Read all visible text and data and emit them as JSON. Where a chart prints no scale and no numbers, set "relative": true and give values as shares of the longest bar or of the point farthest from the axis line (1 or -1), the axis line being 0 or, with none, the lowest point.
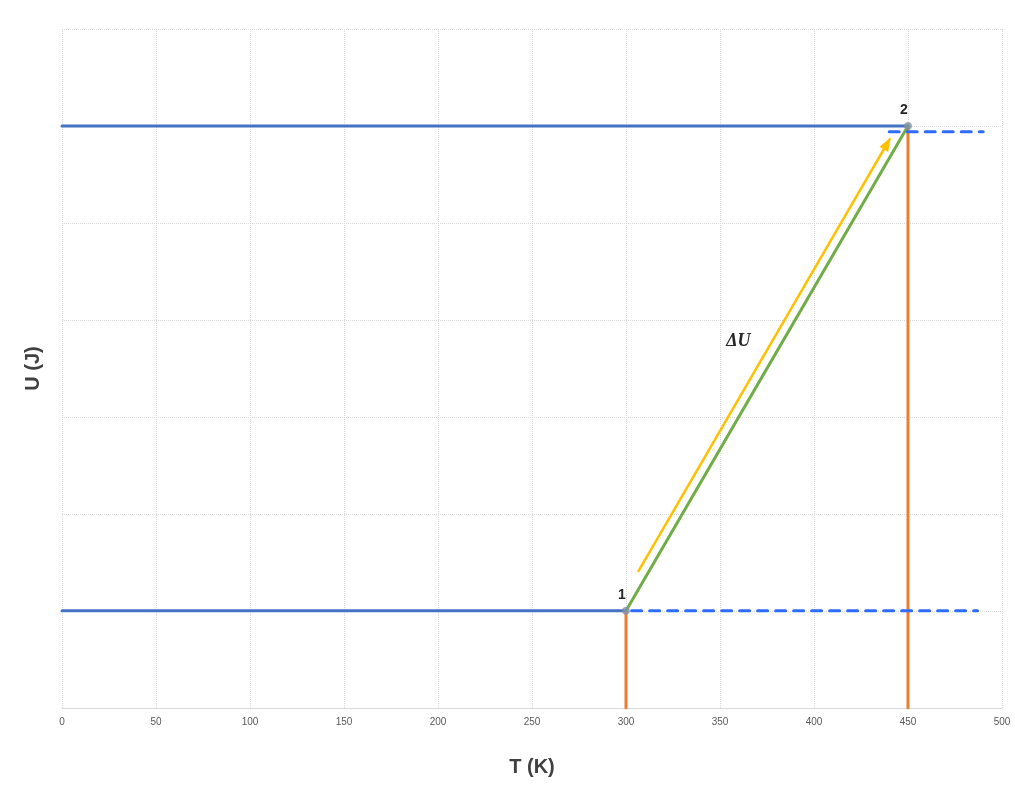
{
  "chart_data": {
    "type": "line",
    "xlabel": "T (K)",
    "ylabel": "U (J)",
    "relative": true,
    "xlim": [
      0,
      500
    ],
    "xticks": [
      0,
      50,
      100,
      150,
      200,
      250,
      300,
      350,
      400,
      450,
      500
    ],
    "grid": true,
    "marker": "none",
    "line_style": "solid",
    "series": [
      {
        "color": "#4472c4",
        "x": [
          0,
          300
        ],
        "values": [
          0.167,
          0.167
        ]
      },
      {
        "color": "#4472c4",
        "x": [
          0,
          450
        ],
        "values": [
          1,
          1
        ]
      },
      {
        "color": "#ed7d31",
        "x": [
          300,
          300
        ],
        "values": [
          0,
          0.167
        ]
      },
      {
        "color": "#ed7d31",
        "x": [
          450,
          450
        ],
        "values": [
          0,
          1
        ]
      },
      {
        "color": "#70ad47",
        "x": [
          300,
          450
        ],
        "values": [
          0.167,
          1
        ]
      },
      {
        "color": "#2f6bff",
        "x": [
          303,
          487
        ],
        "values": [
          0.167,
          0.167
        ],
        "line_style": "dashed"
      },
      {
        "color": "#2f6bff",
        "x": [
          440,
          490
        ],
        "values": [
          0.99,
          0.99
        ],
        "line_style": "dashed"
      },
      {
        "type": "scatter",
        "color": "#7f8fa6",
        "x": [
          300,
          450
        ],
        "values": [
          0.167,
          1
        ],
        "marker": "circle"
      }
    ],
    "annotations": [
      {
        "text": "1",
        "x": 300,
        "y": 0.167
      },
      {
        "text": "2",
        "x": 450,
        "y": 1
      },
      "ΔU"
    ]
  }
}
